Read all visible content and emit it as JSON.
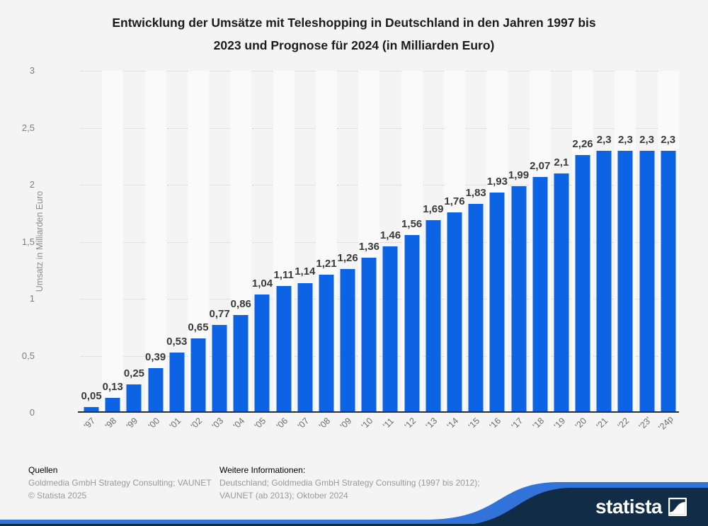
{
  "title": {
    "lines": [
      "Entwicklung der Umsätze mit Teleshopping in Deutschland in den Jahren 1997 bis",
      "2023 und Prognose für 2024 (in Milliarden Euro)"
    ]
  },
  "chart_data": {
    "type": "bar",
    "title": "Entwicklung der Umsätze mit Teleshopping in Deutschland in den Jahren 1997 bis 2023 und Prognose für 2024 (in Milliarden Euro)",
    "categories": [
      "'97",
      "'98",
      "'99",
      "'00",
      "'01",
      "'02",
      "'03",
      "'04",
      "'05",
      "'06",
      "'07",
      "'08",
      "'09",
      "'10",
      "'11",
      "'12",
      "'13",
      "'14",
      "'15",
      "'16",
      "'17",
      "'18",
      "'19",
      "'20",
      "'21",
      "'22",
      "'23'",
      "'24p"
    ],
    "values": [
      0.05,
      0.13,
      0.25,
      0.39,
      0.53,
      0.65,
      0.77,
      0.86,
      1.04,
      1.11,
      1.14,
      1.21,
      1.26,
      1.36,
      1.46,
      1.56,
      1.69,
      1.76,
      1.83,
      1.93,
      1.99,
      2.07,
      2.1,
      2.26,
      2.3,
      2.3,
      2.3,
      2.3
    ],
    "value_labels": [
      "0,05",
      "0,13",
      "0,25",
      "0,39",
      "0,53",
      "0,65",
      "0,77",
      "0,86",
      "1,04",
      "1,11",
      "1,14",
      "1,21",
      "1,26",
      "1,36",
      "1,46",
      "1,56",
      "1,69",
      "1,76",
      "1,83",
      "1,93",
      "1,99",
      "2,07",
      "2,1",
      "2,26",
      "2,3",
      "2,3",
      "2,3",
      "2,3"
    ],
    "xlabel": "",
    "ylabel": "Umsatz in Milliarden Euro",
    "ylim": [
      0,
      3
    ],
    "ytick_step": 0.5,
    "ytick_labels": [
      "0",
      "0,5",
      "1",
      "1,5",
      "2",
      "2,5",
      "3"
    ],
    "grid": "horizontal-dotted",
    "legend": "none",
    "bar_color": "#0c64e4",
    "stripe_color": "#fafafa"
  },
  "footer": {
    "sources_label": "Quellen",
    "sources_text": "Goldmedia GmbH Strategy Consulting; VAUNET",
    "copyright": "© Statista 2025",
    "info_label": "Weitere Informationen:",
    "info_line1": "Deutschland; Goldmedia GmbH Strategy Consulting (1997 bis 2012);",
    "info_line2": "VAUNET (ab 2013); Oktober 2024"
  },
  "branding": {
    "logo_text": "statista",
    "banner_blue": "#3273d9",
    "banner_navy": "#102c47"
  }
}
